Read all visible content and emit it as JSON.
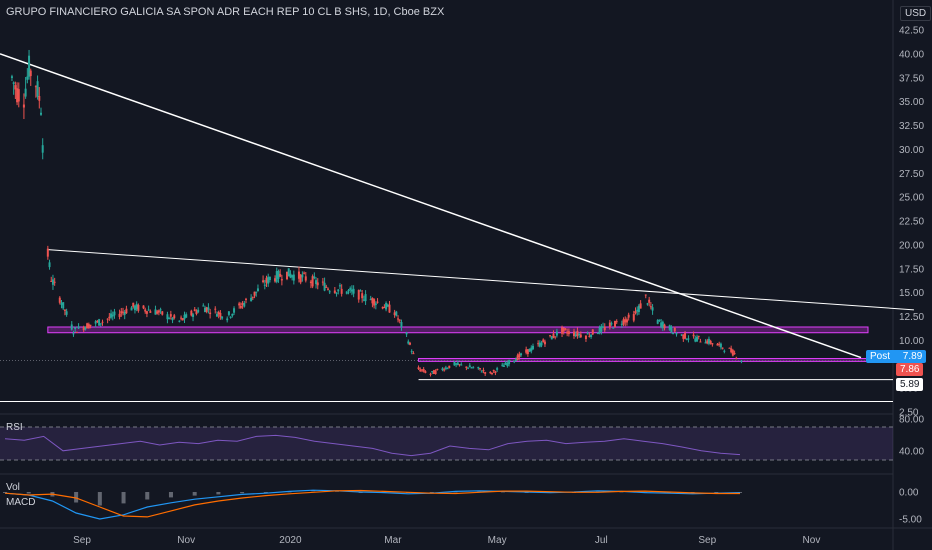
{
  "header": {
    "title": "GRUPO FINANCIERO GALICIA SA SPON ADR EACH REP 10 CL B SHS, 1D, Cboe BZX",
    "currency": "USD"
  },
  "price_axis": {
    "ticks": [
      "42.50",
      "40.00",
      "37.50",
      "35.00",
      "32.50",
      "30.00",
      "27.50",
      "25.00",
      "22.50",
      "20.00",
      "17.50",
      "15.00",
      "12.50",
      "10.00",
      "7.50",
      "5.00",
      "2.50"
    ]
  },
  "time_axis": {
    "labels": [
      "Sep",
      "Nov",
      "2020",
      "Mar",
      "May",
      "Jul",
      "Sep",
      "Nov"
    ]
  },
  "tags": {
    "post_label": "Post",
    "post_value": "7.89",
    "last_value": "7.86",
    "support_value": "5.89"
  },
  "rsi": {
    "label": "RSI",
    "ticks": [
      "80.00",
      "40.00"
    ]
  },
  "macd": {
    "vol_label": "Vol",
    "label": "MACD",
    "ticks": [
      "0.00",
      "-5.00"
    ]
  },
  "colors": {
    "background": "#131722",
    "up": "#26a69a",
    "down": "#ef5350",
    "trendline": "#ffffff",
    "zone": "#9c27b0",
    "rsi": "#7e57c2",
    "macd": "#2196f3",
    "signal": "#ff6d00",
    "post_tag": "#2196f3"
  },
  "chart_data": {
    "type": "candlestick",
    "ylim": [
      2.5,
      42.5
    ],
    "y_ticks": [
      42.5,
      40,
      37.5,
      35,
      32.5,
      30,
      27.5,
      25,
      22.5,
      20,
      17.5,
      15,
      12.5,
      10,
      7.5,
      5,
      2.5
    ],
    "series": [
      {
        "name": "",
        "points": [
          [
            "2019-07-22",
            37.5
          ],
          [
            "2019-07-25",
            36.0
          ],
          [
            "2019-07-29",
            35.5
          ],
          [
            "2019-08-01",
            38.5
          ],
          [
            "2019-08-05",
            37.0
          ],
          [
            "2019-08-08",
            34.5
          ],
          [
            "2019-08-12",
            19.0
          ],
          [
            "2019-08-14",
            16.5
          ],
          [
            "2019-08-20",
            14.0
          ],
          [
            "2019-08-27",
            11.0
          ],
          [
            "2019-09-03",
            11.5
          ],
          [
            "2019-09-13",
            12.0
          ],
          [
            "2019-10-01",
            13.5
          ],
          [
            "2019-10-15",
            13.0
          ],
          [
            "2019-10-28",
            12.0
          ],
          [
            "2019-11-11",
            13.5
          ],
          [
            "2019-11-25",
            12.5
          ],
          [
            "2019-12-09",
            14.5
          ],
          [
            "2019-12-20",
            16.5
          ],
          [
            "2019-12-30",
            17.0
          ],
          [
            "2020-01-10",
            16.5
          ],
          [
            "2020-01-24",
            15.5
          ],
          [
            "2020-02-07",
            15.0
          ],
          [
            "2020-02-21",
            14.0
          ],
          [
            "2020-03-02",
            13.0
          ],
          [
            "2020-03-09",
            10.5
          ],
          [
            "2020-03-16",
            7.0
          ],
          [
            "2020-03-23",
            6.5
          ],
          [
            "2020-04-06",
            7.5
          ],
          [
            "2020-04-20",
            7.0
          ],
          [
            "2020-04-27",
            6.5
          ],
          [
            "2020-05-11",
            8.0
          ],
          [
            "2020-05-25",
            9.5
          ],
          [
            "2020-06-08",
            11.0
          ],
          [
            "2020-06-22",
            10.5
          ],
          [
            "2020-07-06",
            11.5
          ],
          [
            "2020-07-20",
            12.5
          ],
          [
            "2020-07-27",
            14.5
          ],
          [
            "2020-08-03",
            12.0
          ],
          [
            "2020-08-17",
            10.5
          ],
          [
            "2020-08-31",
            10.0
          ],
          [
            "2020-09-14",
            9.0
          ],
          [
            "2020-09-22",
            7.86
          ]
        ]
      }
    ],
    "annotations": {
      "long_trendline": [
        [
          "2019-07-15",
          40.0
        ],
        [
          "2020-11-30",
          8.2
        ]
      ],
      "upper_trendline": [
        [
          "2019-08-12",
          19.5
        ],
        [
          "2020-12-31",
          13.2
        ]
      ],
      "resistance_zone": [
        10.8,
        11.4
      ],
      "support_zone": [
        7.8,
        8.1
      ],
      "support_line": 5.89,
      "post_price": 7.89,
      "last_price": 7.86
    }
  }
}
